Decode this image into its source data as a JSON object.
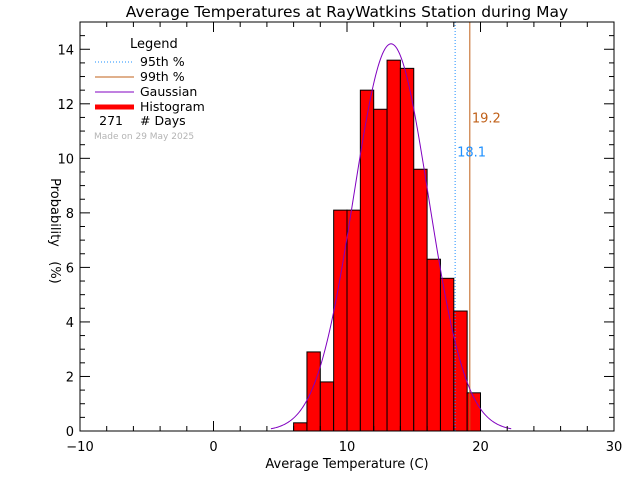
{
  "chart_data": {
    "type": "bar",
    "title": "Average Temperatures at RayWatkins Station during May",
    "xlabel": "Average Temperature (C)",
    "ylabel": "Probability",
    "ylabel_unit": "(%)",
    "xlim": [
      -10,
      30
    ],
    "ylim": [
      0,
      15
    ],
    "xticks": [
      "−10",
      "0",
      "10",
      "20",
      "30"
    ],
    "xtick_values": [
      -10,
      0,
      10,
      20,
      30
    ],
    "yticks": [
      "0",
      "2",
      "4",
      "6",
      "8",
      "10",
      "12",
      "14"
    ],
    "ytick_values": [
      0,
      2,
      4,
      6,
      8,
      10,
      12,
      14
    ],
    "histogram": {
      "bin_width": 1,
      "bin_starts": [
        6,
        7,
        8,
        9,
        10,
        11,
        12,
        13,
        14,
        15,
        16,
        17,
        18,
        19
      ],
      "values": [
        0.3,
        2.9,
        1.8,
        8.1,
        8.1,
        12.5,
        11.8,
        13.6,
        13.3,
        9.6,
        6.3,
        5.6,
        4.4,
        1.4
      ],
      "color": "#ff0000"
    },
    "gaussian": {
      "mean": 13.3,
      "peak": 14.2,
      "sigma": 2.8,
      "x_range": [
        4.3,
        22.3
      ],
      "color": "#8000c0"
    },
    "percentiles": [
      {
        "name": "95th %",
        "value": 18.1,
        "label": "18.1",
        "color": "#1e90ff"
      },
      {
        "name": "99th %",
        "value": 19.2,
        "label": "19.2",
        "color": "#c06018"
      }
    ],
    "legend": {
      "title": "Legend",
      "entries": [
        {
          "label": "95th %",
          "style": "dotted",
          "color": "#1e90ff"
        },
        {
          "label": "99th %",
          "style": "solid",
          "color": "#c06018"
        },
        {
          "label": "Gaussian",
          "style": "solid",
          "color": "#8000c0"
        },
        {
          "label": "Histogram",
          "style": "thick",
          "color": "#ff0000"
        }
      ],
      "count_value": "271",
      "count_label": "# Days",
      "placement": "top-left"
    },
    "made_on": "Made on 29 May 2025"
  }
}
